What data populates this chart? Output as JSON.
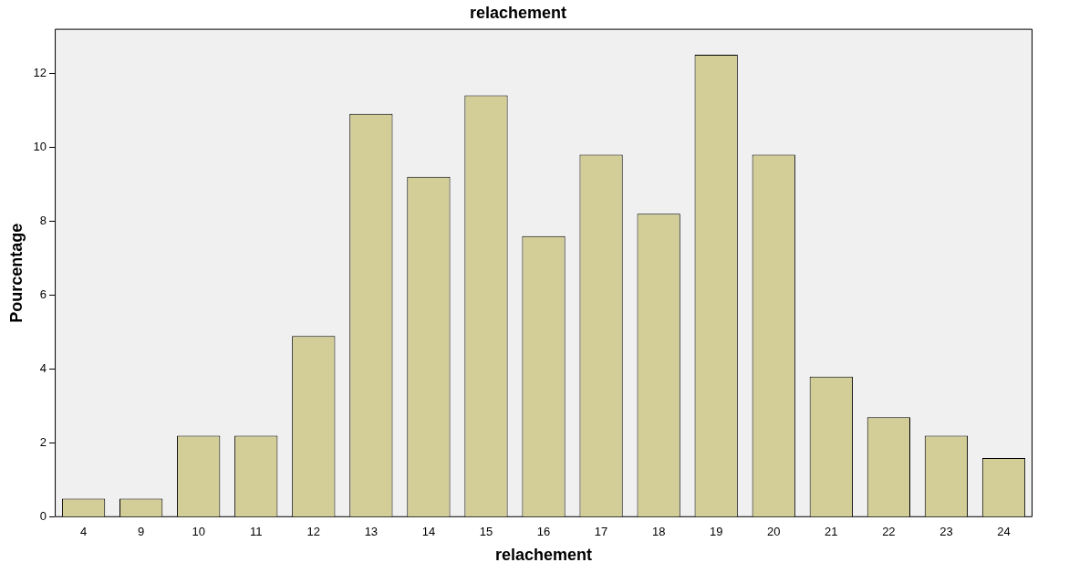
{
  "chart_data": {
    "type": "bar",
    "title": "relachement",
    "xlabel": "relachement",
    "ylabel": "Pourcentage",
    "categories": [
      "4",
      "9",
      "10",
      "11",
      "12",
      "13",
      "14",
      "15",
      "16",
      "17",
      "18",
      "19",
      "20",
      "21",
      "22",
      "23",
      "24"
    ],
    "values": [
      0.5,
      0.5,
      2.2,
      2.2,
      4.9,
      10.9,
      9.2,
      11.4,
      7.6,
      9.8,
      8.2,
      12.5,
      9.8,
      3.8,
      2.7,
      2.2,
      1.6
    ],
    "color": "#d3ce97",
    "ylim": [
      0,
      13.2
    ],
    "yticks": [
      0,
      2,
      4,
      6,
      8,
      10,
      12
    ],
    "grid": false,
    "legend": false
  }
}
